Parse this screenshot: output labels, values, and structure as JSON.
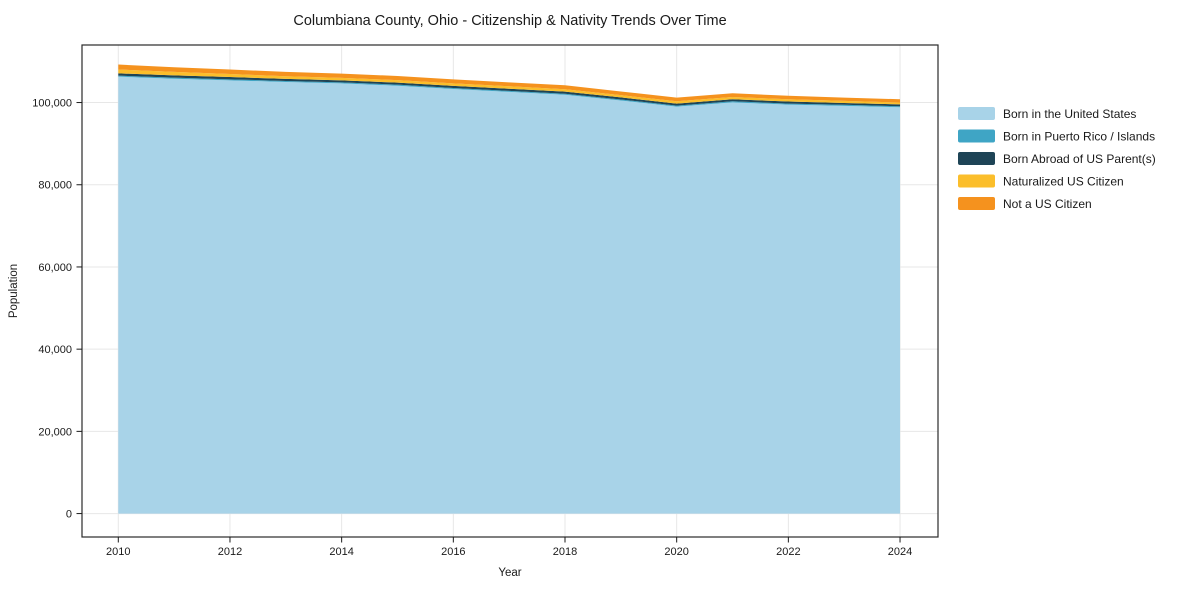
{
  "chart_data": {
    "type": "area",
    "stacked": true,
    "title": "Columbiana County, Ohio - Citizenship & Nativity Trends Over Time",
    "xlabel": "Year",
    "ylabel": "Population",
    "x": [
      2010,
      2011,
      2012,
      2013,
      2014,
      2015,
      2016,
      2017,
      2018,
      2019,
      2020,
      2021,
      2022,
      2023,
      2024
    ],
    "series": [
      {
        "name": "Born in the United States",
        "color": "#a8d3e8",
        "values": [
          106300,
          105800,
          105400,
          105000,
          104650,
          104100,
          103300,
          102600,
          101900,
          100500,
          99000,
          100050,
          99500,
          99200,
          98850
        ]
      },
      {
        "name": "Born in Puerto Rico / Islands",
        "color": "#3fa5c5",
        "values": [
          250,
          250,
          250,
          250,
          250,
          250,
          250,
          250,
          250,
          250,
          250,
          250,
          250,
          250,
          250
        ]
      },
      {
        "name": "Born Abroad of US Parent(s)",
        "color": "#1e4456",
        "values": [
          550,
          550,
          550,
          500,
          500,
          500,
          500,
          500,
          500,
          500,
          500,
          500,
          500,
          450,
          450
        ]
      },
      {
        "name": "Naturalized US Citizen",
        "color": "#fbbe2b",
        "values": [
          950,
          850,
          750,
          650,
          600,
          600,
          600,
          600,
          600,
          550,
          550,
          550,
          550,
          500,
          450
        ]
      },
      {
        "name": "Not a US Citizen",
        "color": "#f5921e",
        "values": [
          1200,
          1150,
          1100,
          1050,
          1050,
          1000,
          1000,
          950,
          950,
          900,
          900,
          900,
          850,
          800,
          800
        ]
      }
    ],
    "xticks": [
      2010,
      2012,
      2014,
      2016,
      2018,
      2020,
      2022,
      2024
    ],
    "yticks": [
      0,
      20000,
      40000,
      60000,
      80000,
      100000
    ],
    "xlim": [
      2009.35,
      2024.68
    ],
    "ylim": [
      -5700,
      114000
    ],
    "grid": true,
    "grid_color": "#e7e7e7",
    "spine_color": "#2a2a2a",
    "tick_color": "#1a1a1a",
    "legend_position": "right-outside"
  }
}
